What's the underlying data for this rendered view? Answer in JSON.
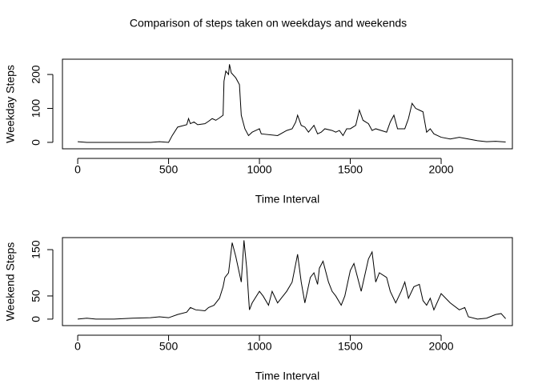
{
  "title": "Comparison of steps taken on weekdays and weekends",
  "chart_data": [
    {
      "type": "line",
      "xlabel": "Time Interval",
      "ylabel": "Weekday Steps",
      "color": "#000000",
      "xlim": [
        -84,
        2392
      ],
      "ylim": [
        -19,
        245
      ],
      "xticks": [
        0,
        500,
        1000,
        1500,
        2000
      ],
      "yticks": [
        0,
        100,
        200
      ],
      "x": [
        0,
        50,
        100,
        200,
        300,
        400,
        450,
        500,
        520,
        550,
        600,
        610,
        620,
        640,
        660,
        700,
        720,
        740,
        760,
        780,
        800,
        805,
        815,
        830,
        835,
        845,
        870,
        890,
        900,
        920,
        940,
        960,
        980,
        1000,
        1010,
        1100,
        1150,
        1180,
        1200,
        1210,
        1230,
        1250,
        1270,
        1300,
        1320,
        1340,
        1360,
        1400,
        1420,
        1440,
        1460,
        1480,
        1500,
        1530,
        1550,
        1570,
        1600,
        1620,
        1640,
        1700,
        1720,
        1740,
        1760,
        1800,
        1820,
        1840,
        1860,
        1880,
        1900,
        1920,
        1940,
        1960,
        2000,
        2050,
        2100,
        2150,
        2200,
        2250,
        2300,
        2355
      ],
      "values": [
        2,
        0,
        0,
        0,
        0,
        0,
        2,
        0,
        20,
        45,
        52,
        70,
        55,
        60,
        52,
        55,
        62,
        70,
        65,
        72,
        80,
        180,
        210,
        200,
        230,
        205,
        190,
        170,
        80,
        40,
        20,
        30,
        35,
        40,
        25,
        20,
        35,
        40,
        60,
        80,
        50,
        45,
        30,
        50,
        25,
        30,
        40,
        35,
        30,
        35,
        20,
        40,
        40,
        50,
        95,
        65,
        55,
        35,
        40,
        30,
        60,
        80,
        40,
        40,
        70,
        115,
        100,
        95,
        90,
        30,
        40,
        25,
        15,
        10,
        15,
        10,
        5,
        2,
        3,
        1
      ]
    },
    {
      "type": "line",
      "xlabel": "Time Interval",
      "ylabel": "Weekend Steps",
      "color": "#000000",
      "xlim": [
        -84,
        2392
      ],
      "ylim": [
        -14,
        176
      ],
      "xticks": [
        0,
        500,
        1000,
        1500,
        2000
      ],
      "yticks": [
        0,
        50,
        150
      ],
      "x": [
        0,
        50,
        100,
        200,
        300,
        400,
        450,
        500,
        550,
        600,
        620,
        650,
        700,
        720,
        750,
        780,
        800,
        810,
        830,
        850,
        870,
        900,
        915,
        930,
        945,
        960,
        1000,
        1020,
        1050,
        1070,
        1100,
        1120,
        1150,
        1180,
        1200,
        1210,
        1230,
        1250,
        1280,
        1300,
        1320,
        1330,
        1350,
        1380,
        1400,
        1420,
        1450,
        1470,
        1500,
        1520,
        1540,
        1560,
        1600,
        1620,
        1640,
        1660,
        1700,
        1720,
        1750,
        1780,
        1800,
        1820,
        1850,
        1880,
        1900,
        1920,
        1940,
        1960,
        2000,
        2050,
        2100,
        2130,
        2150,
        2200,
        2250,
        2300,
        2330,
        2355
      ],
      "values": [
        0,
        2,
        0,
        0,
        2,
        3,
        5,
        3,
        10,
        15,
        25,
        20,
        18,
        25,
        30,
        45,
        70,
        90,
        100,
        165,
        135,
        80,
        170,
        110,
        20,
        35,
        60,
        50,
        30,
        60,
        35,
        45,
        60,
        80,
        120,
        140,
        80,
        35,
        90,
        100,
        75,
        110,
        125,
        80,
        60,
        50,
        30,
        50,
        105,
        120,
        90,
        60,
        130,
        145,
        80,
        100,
        90,
        60,
        35,
        60,
        80,
        45,
        70,
        75,
        40,
        30,
        45,
        20,
        55,
        35,
        20,
        25,
        5,
        0,
        2,
        10,
        12,
        1
      ]
    }
  ]
}
